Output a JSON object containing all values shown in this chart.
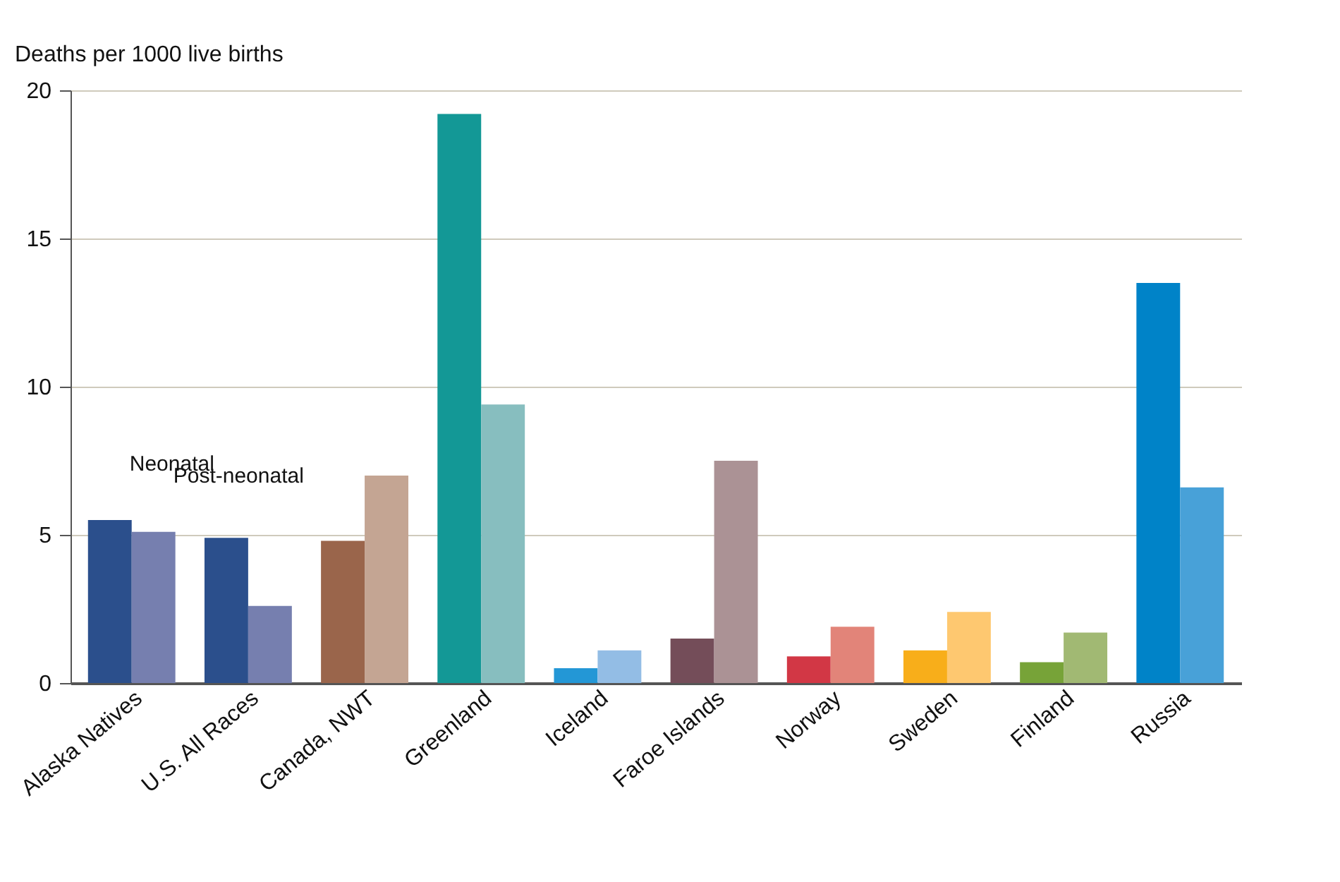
{
  "chart_data": {
    "type": "bar",
    "ylabel": "Deaths per 1000 live births",
    "categories": [
      "Alaska Natives",
      "U.S. All Races",
      "Canada, NWT",
      "Greenland",
      "Iceland",
      "Faroe Islands",
      "Norway",
      "Sweden",
      "Finland",
      "Russia"
    ],
    "series": [
      {
        "name": "Neonatal",
        "colors": [
          "#2b4f8c",
          "#2b4f8c",
          "#9a654b",
          "#139896",
          "#2397d6",
          "#744d59",
          "#d23745",
          "#f8ae1a",
          "#77a338",
          "#0083c8"
        ],
        "values": [
          5.5,
          4.9,
          4.8,
          19.2,
          0.5,
          1.5,
          0.9,
          1.1,
          0.7,
          13.5
        ]
      },
      {
        "name": "Post-neonatal",
        "colors": [
          "#767faf",
          "#767faf",
          "#c4a593",
          "#87bebf",
          "#93bde5",
          "#ab9295",
          "#e28479",
          "#fec870",
          "#a1b973",
          "#48a1d8"
        ],
        "values": [
          5.1,
          2.6,
          7.0,
          9.4,
          1.1,
          7.5,
          1.9,
          2.4,
          1.7,
          6.6
        ]
      }
    ],
    "ylim": [
      0,
      20
    ],
    "yticks": [
      0,
      5,
      10,
      15,
      20
    ],
    "grid": "y",
    "legend": false
  }
}
